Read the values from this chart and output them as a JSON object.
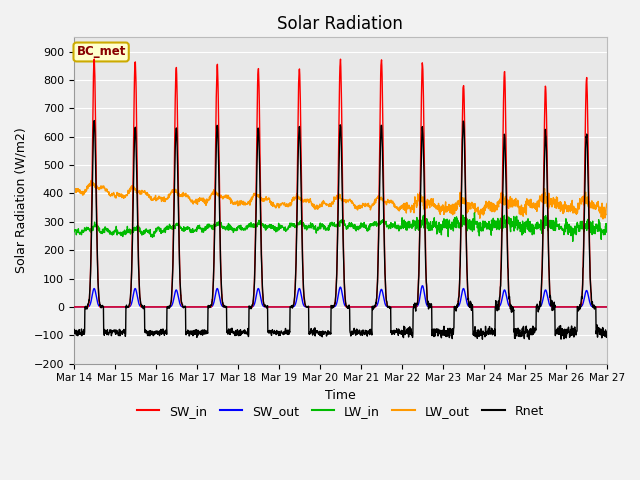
{
  "title": "Solar Radiation",
  "ylabel": "Solar Radiation (W/m2)",
  "xlabel": "Time",
  "ylim": [
    -200,
    950
  ],
  "yticks": [
    -200,
    -100,
    0,
    100,
    200,
    300,
    400,
    500,
    600,
    700,
    800,
    900
  ],
  "num_days": 13,
  "colors": {
    "SW_in": "#ff0000",
    "SW_out": "#0000ff",
    "LW_in": "#00bb00",
    "LW_out": "#ff9900",
    "Rnet": "#000000"
  },
  "label_box_text": "BC_met",
  "label_box_facecolor": "#ffffcc",
  "label_box_edgecolor": "#ccaa00",
  "background_color": "#e8e8e8",
  "grid_color": "#ffffff",
  "title_fontsize": 12,
  "axis_fontsize": 9,
  "legend_fontsize": 9,
  "fig_facecolor": "#f2f2f2"
}
